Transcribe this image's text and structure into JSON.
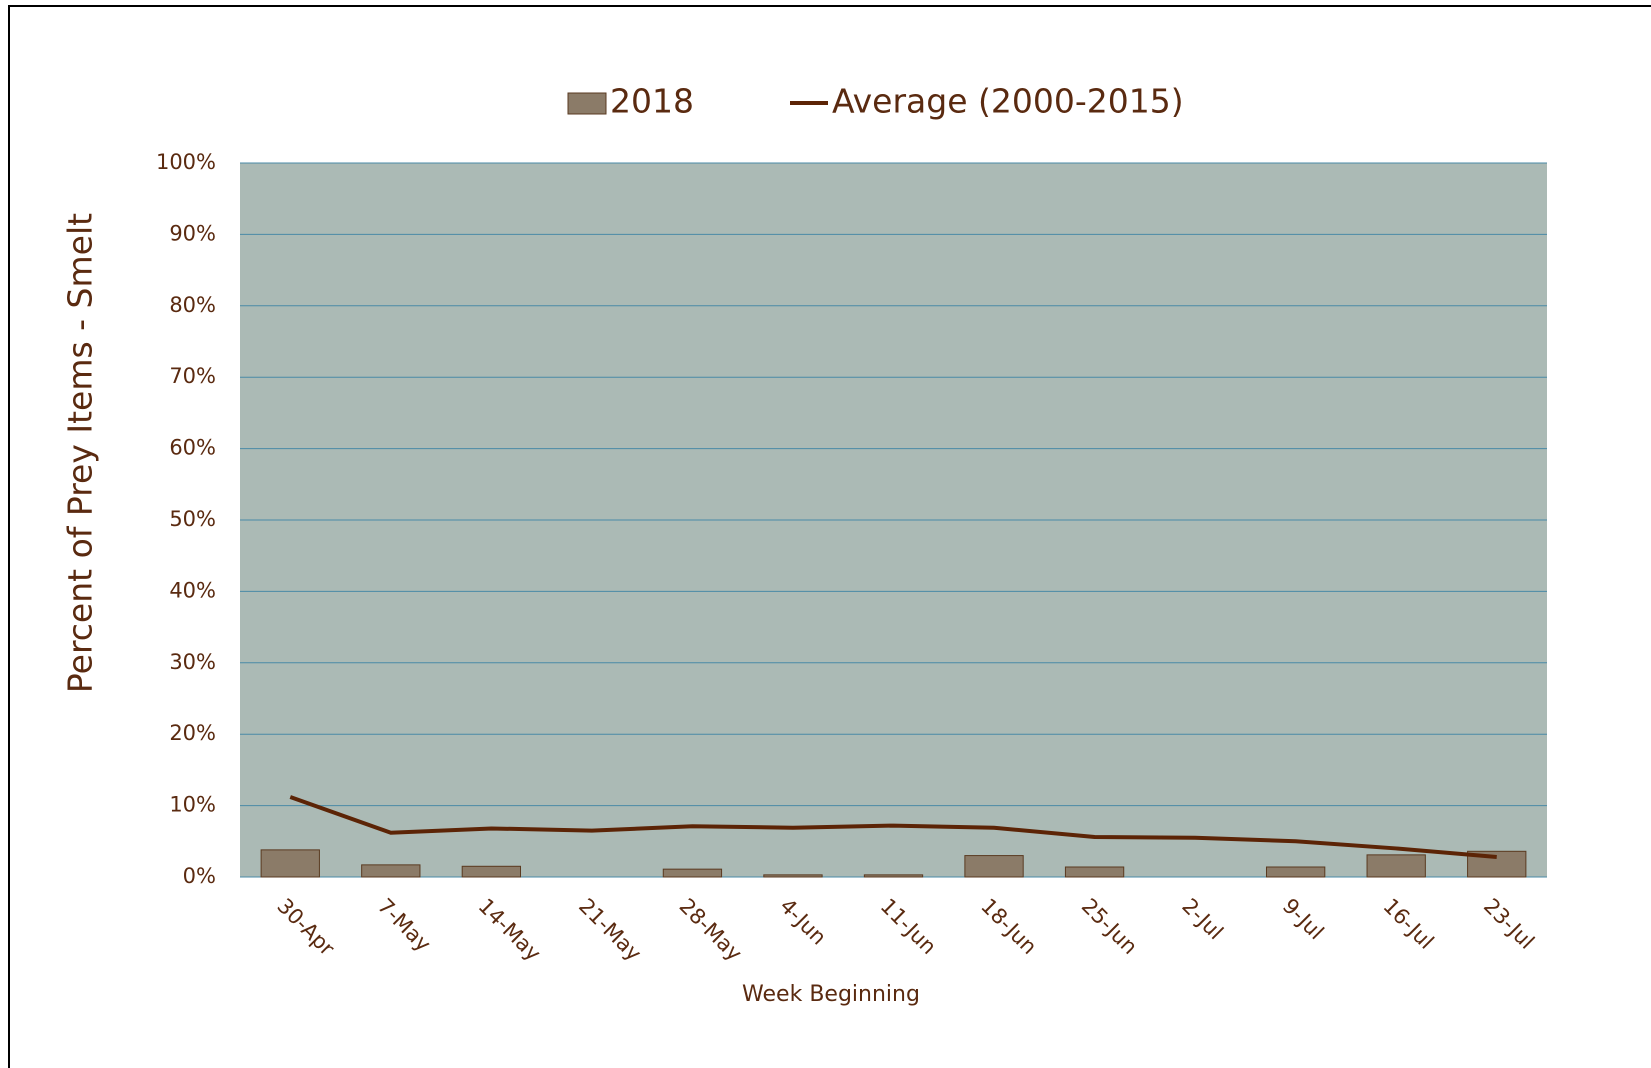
{
  "chart_data": {
    "type": "bar-line",
    "y_label": "Percent of Prey Items - Smelt",
    "x_label": "Week Beginning",
    "categories": [
      "30-Apr",
      "7-May",
      "14-May",
      "21-May",
      "28-May",
      "4-Jun",
      "11-Jun",
      "18-Jun",
      "25-Jun",
      "2-Jul",
      "9-Jul",
      "16-Jul",
      "23-Jul"
    ],
    "series": [
      {
        "name": "2018",
        "type": "bar",
        "color": "#8b7b68",
        "values": [
          3.8,
          1.7,
          1.5,
          0,
          1.1,
          0.3,
          0.3,
          3.0,
          1.4,
          0,
          1.4,
          3.1,
          3.6
        ]
      },
      {
        "name": "Average (2000-2015)",
        "type": "line",
        "color": "#5c2406",
        "values": [
          11.2,
          6.2,
          6.8,
          6.5,
          7.1,
          6.9,
          7.2,
          6.9,
          5.6,
          5.5,
          5.0,
          4.0,
          2.8
        ]
      }
    ],
    "ylim": [
      0,
      100
    ],
    "yticks": [
      {
        "value": 0,
        "label": "0%"
      },
      {
        "value": 10,
        "label": "10%"
      },
      {
        "value": 20,
        "label": "20%"
      },
      {
        "value": 30,
        "label": "30%"
      },
      {
        "value": 40,
        "label": "40%"
      },
      {
        "value": 50,
        "label": "50%"
      },
      {
        "value": 60,
        "label": "60%"
      },
      {
        "value": 70,
        "label": "70%"
      },
      {
        "value": 80,
        "label": "80%"
      },
      {
        "value": 90,
        "label": "90%"
      },
      {
        "value": 100,
        "label": "100%"
      }
    ],
    "grid": true
  }
}
